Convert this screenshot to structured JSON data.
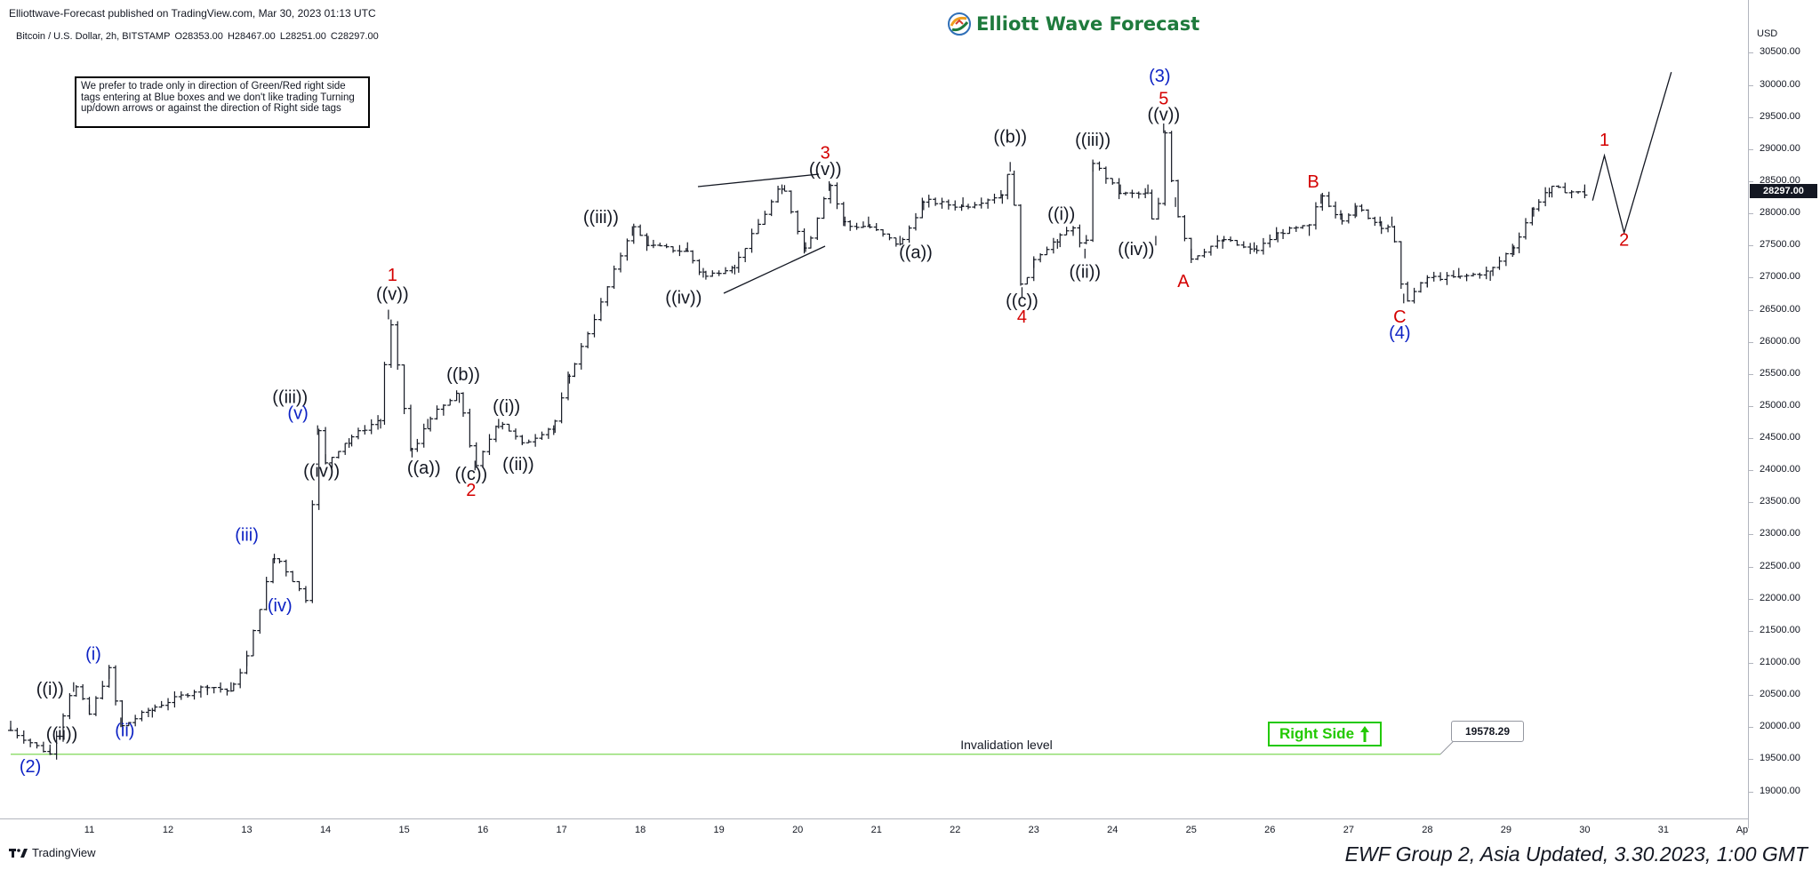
{
  "header": {
    "published": "Elliottwave-Forecast published on TradingView.com, Mar 30, 2023 01:13 UTC",
    "symbol": "Bitcoin / U.S. Dollar, 2h, BITSTAMP",
    "ohlc": [
      "O28353.00",
      "H28467.00",
      "L28251.00",
      "C28297.00"
    ],
    "brand": "Elliott Wave Forecast"
  },
  "note": "We prefer to trade only in direction of Green/Red right side tags entering at Blue boxes and we don't like trading Turning up/down arrows or against the direction of Right side tags",
  "footer": {
    "tradingview": "TradingView",
    "title": "EWF Group 2, Asia Updated, 3.30.2023, 1:00 GMT"
  },
  "colors": {
    "black": "#131722",
    "red": "#d40000",
    "blue": "#0d22c4",
    "green": "#22c900",
    "brand_green": "#1e7a3c"
  },
  "icons": [
    "ewf-logo-icon",
    "up-arrow-icon",
    "tradingview-logo-icon"
  ],
  "chart_data": {
    "type": "ohlc-bar",
    "currency": "USD",
    "last_price": "28297.00",
    "y_ticks": [
      "30500.00",
      "30000.00",
      "29500.00",
      "29000.00",
      "28500.00",
      "28000.00",
      "27500.00",
      "27000.00",
      "26500.00",
      "26000.00",
      "25500.00",
      "25000.00",
      "24500.00",
      "24000.00",
      "23500.00",
      "23000.00",
      "22500.00",
      "22000.00",
      "21500.00",
      "21000.00",
      "20500.00",
      "20000.00",
      "19500.00",
      "19000.00"
    ],
    "x_ticks": [
      "11",
      "12",
      "13",
      "14",
      "15",
      "16",
      "17",
      "18",
      "19",
      "20",
      "21",
      "22",
      "23",
      "24",
      "25",
      "26",
      "27",
      "28",
      "29",
      "30",
      "31",
      "Ap"
    ],
    "invalidation": {
      "label": "Invalidation level",
      "value": "19578.29"
    },
    "right_side": "Right Side",
    "path": [
      [
        10.0,
        19950
      ],
      [
        10.5,
        19578
      ],
      [
        10.8,
        20700
      ],
      [
        11.0,
        20200
      ],
      [
        11.25,
        20900
      ],
      [
        11.4,
        20000
      ],
      [
        11.8,
        20300
      ],
      [
        12.5,
        20650
      ],
      [
        12.8,
        20550
      ],
      [
        13.0,
        21100
      ],
      [
        13.35,
        22700
      ],
      [
        13.75,
        22000
      ],
      [
        13.9,
        24700
      ],
      [
        14.0,
        24100
      ],
      [
        14.3,
        24500
      ],
      [
        14.7,
        24800
      ],
      [
        14.8,
        26500
      ],
      [
        15.1,
        24200
      ],
      [
        15.3,
        24800
      ],
      [
        15.5,
        25000
      ],
      [
        15.7,
        25200
      ],
      [
        15.9,
        24000
      ],
      [
        16.2,
        24800
      ],
      [
        16.5,
        24400
      ],
      [
        16.9,
        24700
      ],
      [
        17.1,
        25500
      ],
      [
        17.5,
        26600
      ],
      [
        17.9,
        27800
      ],
      [
        18.1,
        27500
      ],
      [
        18.6,
        27400
      ],
      [
        18.8,
        27000
      ],
      [
        19.2,
        27200
      ],
      [
        19.8,
        28450
      ],
      [
        20.1,
        27400
      ],
      [
        20.4,
        28500
      ],
      [
        20.6,
        27800
      ],
      [
        20.9,
        27800
      ],
      [
        21.3,
        27500
      ],
      [
        21.6,
        28200
      ],
      [
        22.1,
        28100
      ],
      [
        22.6,
        28300
      ],
      [
        22.7,
        28800
      ],
      [
        22.85,
        26700
      ],
      [
        23.0,
        27300
      ],
      [
        23.3,
        27600
      ],
      [
        23.5,
        27800
      ],
      [
        23.65,
        27300
      ],
      [
        23.75,
        28800
      ],
      [
        24.1,
        28300
      ],
      [
        24.45,
        28300
      ],
      [
        24.55,
        27500
      ],
      [
        24.65,
        29400
      ],
      [
        24.8,
        28100
      ],
      [
        25.0,
        27300
      ],
      [
        25.4,
        27600
      ],
      [
        25.8,
        27400
      ],
      [
        26.1,
        27700
      ],
      [
        26.5,
        27800
      ],
      [
        26.65,
        28300
      ],
      [
        26.9,
        27900
      ],
      [
        27.1,
        28100
      ],
      [
        27.4,
        27800
      ],
      [
        27.55,
        27800
      ],
      [
        27.7,
        26600
      ],
      [
        28.0,
        27000
      ],
      [
        28.4,
        27000
      ],
      [
        28.8,
        27100
      ],
      [
        29.1,
        27500
      ],
      [
        29.35,
        28100
      ],
      [
        29.55,
        28400
      ],
      [
        30.0,
        28300
      ]
    ],
    "projection": [
      [
        30.1,
        28200
      ],
      [
        30.25,
        28900
      ],
      [
        30.5,
        27700
      ],
      [
        31.1,
        30200
      ]
    ],
    "wave_labels": [
      {
        "text": "(2)",
        "color": "blue",
        "x": 10.25,
        "y": 19300
      },
      {
        "text": "((i))",
        "color": "black",
        "x": 10.5,
        "y": 20500
      },
      {
        "text": "((ii))",
        "color": "black",
        "x": 10.65,
        "y": 19800
      },
      {
        "text": "(i)",
        "color": "blue",
        "x": 11.05,
        "y": 21050
      },
      {
        "text": "(ii)",
        "color": "blue",
        "x": 11.45,
        "y": 19860
      },
      {
        "text": "(iii)",
        "color": "blue",
        "x": 13.0,
        "y": 22900
      },
      {
        "text": "(iv)",
        "color": "blue",
        "x": 13.42,
        "y": 21800
      },
      {
        "text": "((iii))",
        "color": "black",
        "x": 13.55,
        "y": 25050
      },
      {
        "text": "(v)",
        "color": "blue",
        "x": 13.65,
        "y": 24800
      },
      {
        "text": "((iv))",
        "color": "black",
        "x": 13.95,
        "y": 23900
      },
      {
        "text": "1",
        "color": "red",
        "x": 14.85,
        "y": 26950
      },
      {
        "text": "((v))",
        "color": "black",
        "x": 14.85,
        "y": 26650
      },
      {
        "text": "((a))",
        "color": "black",
        "x": 15.25,
        "y": 23950
      },
      {
        "text": "((b))",
        "color": "black",
        "x": 15.75,
        "y": 25400
      },
      {
        "text": "((c))",
        "color": "black",
        "x": 15.85,
        "y": 23850
      },
      {
        "text": "2",
        "color": "red",
        "x": 15.85,
        "y": 23600
      },
      {
        "text": "((i))",
        "color": "black",
        "x": 16.3,
        "y": 24900
      },
      {
        "text": "((ii))",
        "color": "black",
        "x": 16.45,
        "y": 24000
      },
      {
        "text": "((iii))",
        "color": "black",
        "x": 17.5,
        "y": 27850
      },
      {
        "text": "((iv))",
        "color": "black",
        "x": 18.55,
        "y": 26600
      },
      {
        "text": "3",
        "color": "red",
        "x": 20.35,
        "y": 28850
      },
      {
        "text": "((v))",
        "color": "black",
        "x": 20.35,
        "y": 28600
      },
      {
        "text": "((a))",
        "color": "black",
        "x": 21.5,
        "y": 27300
      },
      {
        "text": "((b))",
        "color": "black",
        "x": 22.7,
        "y": 29100
      },
      {
        "text": "((c))",
        "color": "black",
        "x": 22.85,
        "y": 26550
      },
      {
        "text": "4",
        "color": "red",
        "x": 22.85,
        "y": 26300
      },
      {
        "text": "((i))",
        "color": "black",
        "x": 23.35,
        "y": 27900
      },
      {
        "text": "((iii))",
        "color": "black",
        "x": 23.75,
        "y": 29050
      },
      {
        "text": "((ii))",
        "color": "black",
        "x": 23.65,
        "y": 27000
      },
      {
        "text": "((iv))",
        "color": "black",
        "x": 24.3,
        "y": 27350
      },
      {
        "text": "(3)",
        "color": "blue",
        "x": 24.6,
        "y": 30050
      },
      {
        "text": "5",
        "color": "red",
        "x": 24.65,
        "y": 29700
      },
      {
        "text": "((v))",
        "color": "black",
        "x": 24.65,
        "y": 29450
      },
      {
        "text": "A",
        "color": "red",
        "x": 24.9,
        "y": 26850
      },
      {
        "text": "B",
        "color": "red",
        "x": 26.55,
        "y": 28400
      },
      {
        "text": "C",
        "color": "red",
        "x": 27.65,
        "y": 26300
      },
      {
        "text": "(4)",
        "color": "blue",
        "x": 27.65,
        "y": 26050
      },
      {
        "text": "1",
        "color": "red",
        "x": 30.25,
        "y": 29050
      },
      {
        "text": "2",
        "color": "red",
        "x": 30.5,
        "y": 27500
      }
    ],
    "ylim": [
      18800,
      30700
    ],
    "xlim": [
      10.0,
      31.95
    ]
  }
}
